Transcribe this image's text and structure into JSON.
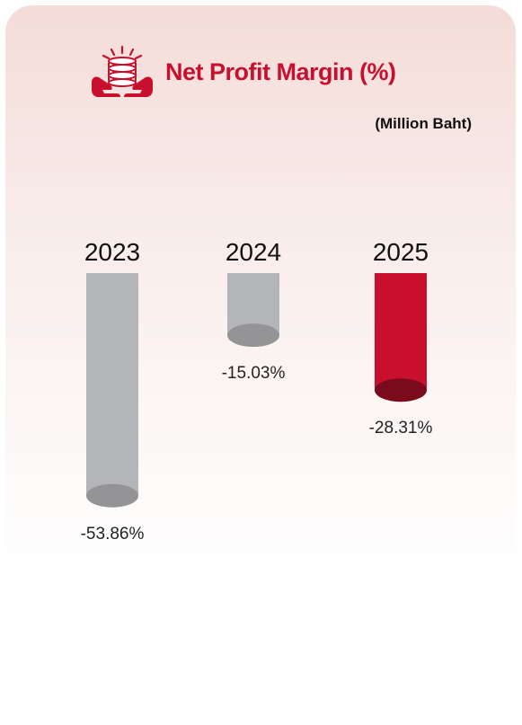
{
  "header": {
    "title": "Net Profit Margin (%)",
    "unit": "(Million Baht)",
    "icon": "coins-in-hands-icon"
  },
  "colors": {
    "accent": "#c8102e",
    "bar_neutral": "#b4b5b8",
    "bar_highlight": "#c8102e"
  },
  "chart_data": {
    "type": "bar",
    "title": "Net Profit Margin (%)",
    "subtitle": "(Million Baht)",
    "xlabel": "",
    "ylabel": "",
    "categories": [
      "2023",
      "2024",
      "2025"
    ],
    "values": [
      -53.86,
      -15.03,
      -28.31
    ],
    "data_labels": [
      "-53.86%",
      "-15.03%",
      "-28.31%"
    ],
    "highlight": [
      false,
      false,
      true
    ],
    "ylim": [
      -60,
      0
    ],
    "grid": false,
    "legend": "none"
  }
}
